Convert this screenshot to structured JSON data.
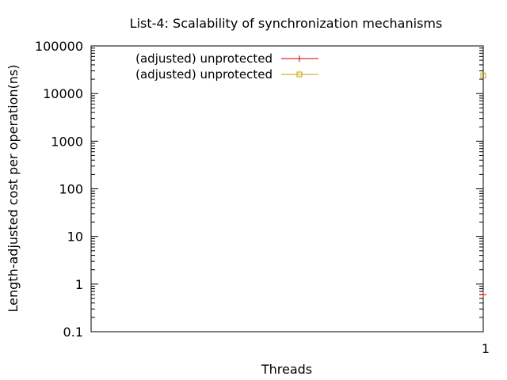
{
  "chart_data": {
    "type": "line",
    "title": "List-4: Scalability of synchronization mechanisms",
    "xlabel": "Threads",
    "ylabel": "Length-adjusted cost per operation(ns)",
    "x_ticks": [
      "1"
    ],
    "xlim": [
      0,
      1
    ],
    "y_scale": "log",
    "ylim": [
      0.1,
      100000
    ],
    "y_ticks": [
      "0.1",
      "1",
      "10",
      "100",
      "1000",
      "10000",
      "100000"
    ],
    "grid": false,
    "legend_position": "top-left",
    "series": [
      {
        "name": "(adjusted) unprotected",
        "color": "#cc0000",
        "marker": "plus",
        "points": [
          {
            "x": 1,
            "y": 0.6
          }
        ]
      },
      {
        "name": "(adjusted) unprotected",
        "color": "#c8a000",
        "marker": "square",
        "points": [
          {
            "x": 1,
            "y": 24000
          }
        ]
      }
    ]
  }
}
